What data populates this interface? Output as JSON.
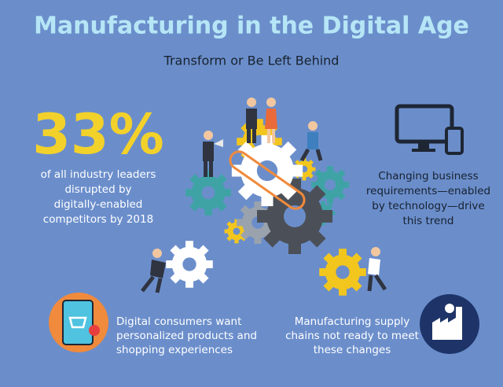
{
  "header": {
    "title": "Manufacturing in the Digital Age",
    "subtitle": "Transform or Be Left Behind"
  },
  "stat": {
    "value": "33%",
    "caption": [
      "of all industry leaders",
      "disrupted by",
      "digitally-enabled",
      "competitors by 2018"
    ]
  },
  "callouts": [
    {
      "lines": [
        "Changing business",
        "requirements—enabled",
        "by technology—drive",
        "this trend"
      ]
    },
    {
      "lines": [
        "Digital consumers want",
        "personalized products and",
        "shopping experiences"
      ]
    },
    {
      "lines": [
        "Manufacturing supply",
        "chains not ready to meet",
        "these changes"
      ]
    }
  ]
}
